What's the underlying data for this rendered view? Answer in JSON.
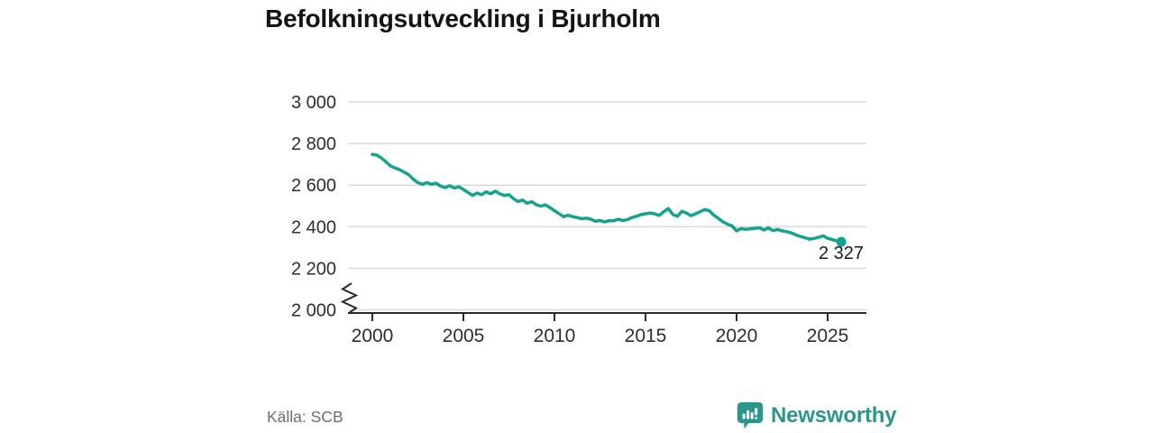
{
  "chart_data": {
    "type": "line",
    "title": "Befolkningsutveckling i Bjurholm",
    "xlabel": "",
    "ylabel": "",
    "xlim": [
      1998.7,
      2027.2
    ],
    "ylim": [
      2000,
      3050
    ],
    "axis_break_at_bottom": true,
    "grid": true,
    "x_ticks": [
      2000,
      2005,
      2010,
      2015,
      2020,
      2025
    ],
    "x_tick_labels": [
      "2000",
      "2005",
      "2010",
      "2015",
      "2020",
      "2025"
    ],
    "y_ticks": [
      2000,
      2200,
      2400,
      2600,
      2800,
      3000
    ],
    "y_tick_labels": [
      "2 000",
      "2 200",
      "2 400",
      "2 600",
      "2 800",
      "3 000"
    ],
    "end_label": "2 327",
    "end_point": {
      "x": 2025.75,
      "y": 2327
    },
    "series": [
      {
        "name": "Befolkning i Bjurholm",
        "points": [
          [
            2000.0,
            2748
          ],
          [
            2000.25,
            2744
          ],
          [
            2000.5,
            2730
          ],
          [
            2000.75,
            2712
          ],
          [
            2001.0,
            2692
          ],
          [
            2001.25,
            2682
          ],
          [
            2001.5,
            2674
          ],
          [
            2001.75,
            2662
          ],
          [
            2002.0,
            2650
          ],
          [
            2002.25,
            2628
          ],
          [
            2002.5,
            2612
          ],
          [
            2002.75,
            2604
          ],
          [
            2003.0,
            2612
          ],
          [
            2003.25,
            2604
          ],
          [
            2003.5,
            2609
          ],
          [
            2003.75,
            2595
          ],
          [
            2004.0,
            2588
          ],
          [
            2004.25,
            2597
          ],
          [
            2004.5,
            2586
          ],
          [
            2004.75,
            2592
          ],
          [
            2005.0,
            2579
          ],
          [
            2005.25,
            2565
          ],
          [
            2005.5,
            2550
          ],
          [
            2005.75,
            2562
          ],
          [
            2006.0,
            2554
          ],
          [
            2006.25,
            2568
          ],
          [
            2006.5,
            2558
          ],
          [
            2006.75,
            2571
          ],
          [
            2007.0,
            2558
          ],
          [
            2007.25,
            2550
          ],
          [
            2007.5,
            2554
          ],
          [
            2007.75,
            2535
          ],
          [
            2008.0,
            2521
          ],
          [
            2008.25,
            2528
          ],
          [
            2008.5,
            2513
          ],
          [
            2008.75,
            2520
          ],
          [
            2009.0,
            2506
          ],
          [
            2009.25,
            2499
          ],
          [
            2009.5,
            2505
          ],
          [
            2009.75,
            2492
          ],
          [
            2010.0,
            2477
          ],
          [
            2010.25,
            2463
          ],
          [
            2010.5,
            2448
          ],
          [
            2010.75,
            2455
          ],
          [
            2011.0,
            2448
          ],
          [
            2011.25,
            2444
          ],
          [
            2011.5,
            2438
          ],
          [
            2011.75,
            2441
          ],
          [
            2012.0,
            2436
          ],
          [
            2012.25,
            2426
          ],
          [
            2012.5,
            2430
          ],
          [
            2012.75,
            2423
          ],
          [
            2013.0,
            2429
          ],
          [
            2013.25,
            2428
          ],
          [
            2013.5,
            2436
          ],
          [
            2013.75,
            2430
          ],
          [
            2014.0,
            2434
          ],
          [
            2014.25,
            2444
          ],
          [
            2014.5,
            2450
          ],
          [
            2014.75,
            2458
          ],
          [
            2015.0,
            2462
          ],
          [
            2015.25,
            2466
          ],
          [
            2015.5,
            2462
          ],
          [
            2015.75,
            2454
          ],
          [
            2016.0,
            2472
          ],
          [
            2016.25,
            2487
          ],
          [
            2016.5,
            2459
          ],
          [
            2016.75,
            2450
          ],
          [
            2017.0,
            2474
          ],
          [
            2017.25,
            2465
          ],
          [
            2017.5,
            2453
          ],
          [
            2017.75,
            2462
          ],
          [
            2018.0,
            2472
          ],
          [
            2018.25,
            2483
          ],
          [
            2018.5,
            2477
          ],
          [
            2018.75,
            2455
          ],
          [
            2019.0,
            2440
          ],
          [
            2019.25,
            2424
          ],
          [
            2019.5,
            2412
          ],
          [
            2019.75,
            2404
          ],
          [
            2020.0,
            2380
          ],
          [
            2020.25,
            2391
          ],
          [
            2020.5,
            2387
          ],
          [
            2020.75,
            2390
          ],
          [
            2021.0,
            2392
          ],
          [
            2021.25,
            2395
          ],
          [
            2021.5,
            2384
          ],
          [
            2021.75,
            2395
          ],
          [
            2022.0,
            2381
          ],
          [
            2022.25,
            2387
          ],
          [
            2022.5,
            2380
          ],
          [
            2022.75,
            2376
          ],
          [
            2023.0,
            2370
          ],
          [
            2023.25,
            2361
          ],
          [
            2023.5,
            2353
          ],
          [
            2023.75,
            2347
          ],
          [
            2024.0,
            2340
          ],
          [
            2024.25,
            2343
          ],
          [
            2024.5,
            2349
          ],
          [
            2024.75,
            2356
          ],
          [
            2025.0,
            2344
          ],
          [
            2025.25,
            2338
          ],
          [
            2025.5,
            2332
          ],
          [
            2025.75,
            2327
          ]
        ]
      }
    ],
    "legend": "none"
  },
  "colors": {
    "line": "#14a38e",
    "grid": "#d9d9d9",
    "axis": "#2b2b2b",
    "tick_text": "#2e2e2e",
    "title_text": "#141414",
    "source_text": "#6e6e6e",
    "brand_teal": "#2b968b"
  },
  "footer": {
    "source": "Källa: SCB",
    "brand": "Newsworthy"
  }
}
